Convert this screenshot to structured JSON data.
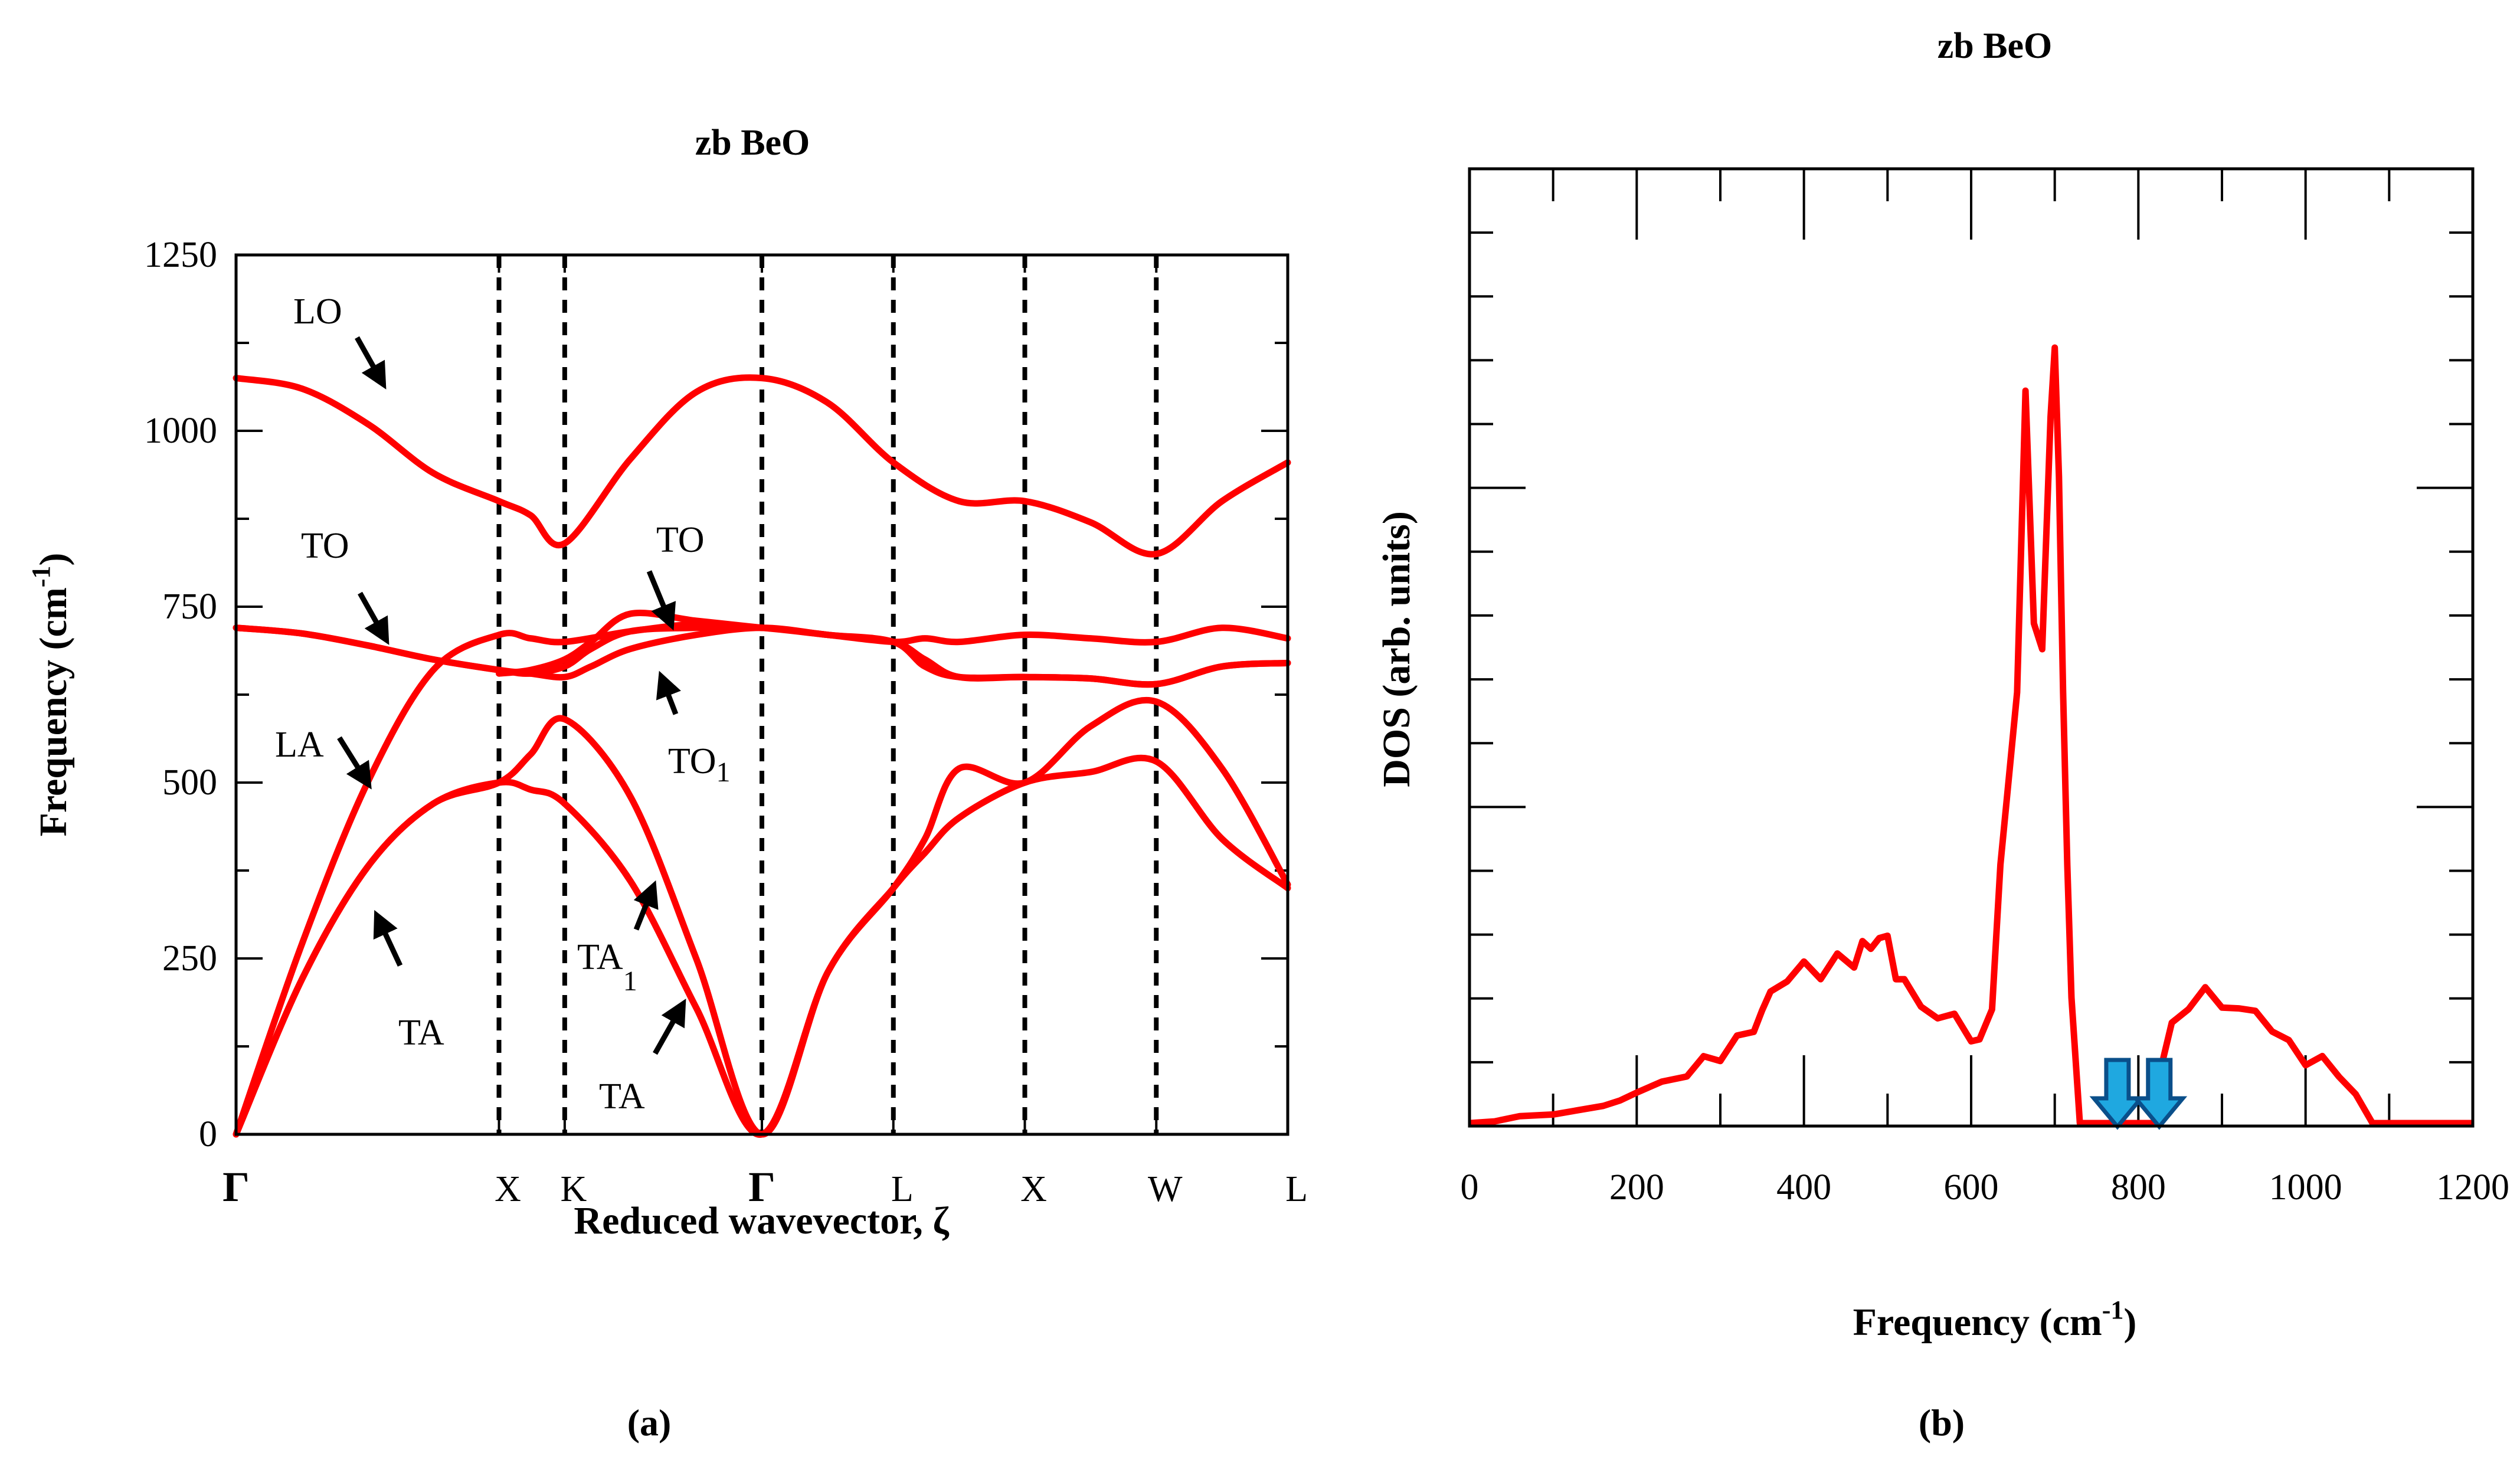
{
  "chart_data": [
    {
      "type": "line",
      "subtype": "phonon-dispersion",
      "panel_label": "a",
      "title": "zb BeO",
      "xlabel": "Reduced wavevector, ζ",
      "ylabel": "Frequency (cm",
      "ylabel_sup": "-1",
      "ylabel_close": ")",
      "ylim": [
        0,
        1250
      ],
      "yticks": [
        "0",
        "250",
        "500",
        "750",
        "1000",
        "1250"
      ],
      "high_symmetry_points": [
        {
          "label": "Γ",
          "x": 0.0
        },
        {
          "label": "X",
          "x": 1.0
        },
        {
          "label": "K",
          "x": 1.25
        },
        {
          "label": "Γ",
          "x": 2.0
        },
        {
          "label": "L",
          "x": 2.5
        },
        {
          "label": "X",
          "x": 3.0
        },
        {
          "label": "W",
          "x": 3.5
        },
        {
          "label": "L",
          "x": 4.0
        }
      ],
      "series": [
        {
          "name": "LO",
          "x": [
            0,
            0.25,
            0.5,
            0.75,
            1.0,
            1.12,
            1.25,
            1.5,
            1.75,
            2.0,
            2.25,
            2.5,
            2.75,
            3.0,
            3.25,
            3.5,
            3.75,
            4.0
          ],
          "y": [
            1075,
            1060,
            1010,
            940,
            900,
            880,
            840,
            960,
            1055,
            1075,
            1040,
            955,
            900,
            900,
            870,
            825,
            900,
            955
          ]
        },
        {
          "name": "TO upper",
          "x": [
            0,
            0.25,
            0.5,
            0.75,
            1.0,
            1.12,
            1.25,
            1.35,
            1.5,
            1.75,
            2.0,
            2.25,
            2.5,
            2.62,
            2.75,
            3.0,
            3.25,
            3.5,
            3.75,
            4.0
          ],
          "y": [
            720,
            712,
            695,
            675,
            660,
            655,
            665,
            690,
            715,
            720,
            720,
            710,
            700,
            665,
            650,
            650,
            648,
            640,
            665,
            670
          ]
        },
        {
          "name": "TO lower",
          "x": [
            0,
            0.25,
            0.5,
            0.75,
            1.0,
            1.12,
            1.25,
            1.35,
            1.5,
            1.75,
            2.0,
            2.25,
            2.5,
            2.62,
            2.75,
            3.0,
            3.25,
            3.5,
            3.75,
            4.0
          ],
          "y": [
            720,
            712,
            695,
            675,
            660,
            655,
            650,
            665,
            690,
            710,
            720,
            710,
            700,
            675,
            650,
            650,
            648,
            640,
            665,
            670
          ]
        },
        {
          "name": "TO1",
          "x": [
            1.0,
            1.12,
            1.25,
            1.35,
            1.5,
            1.75,
            2.0
          ],
          "y": [
            655,
            660,
            675,
            700,
            740,
            730,
            720
          ]
        },
        {
          "name": "LA",
          "x": [
            0,
            0.25,
            0.5,
            0.75,
            1.0,
            1.12,
            1.25,
            1.5,
            1.75,
            2.0,
            2.25,
            2.5,
            2.62,
            2.75,
            3.0,
            3.25,
            3.5,
            3.75,
            4.0
          ],
          "y": [
            0,
            270,
            500,
            660,
            710,
            705,
            700,
            715,
            725,
            720,
            710,
            700,
            705,
            700,
            710,
            705,
            700,
            720,
            705
          ]
        },
        {
          "name": "TA1",
          "x": [
            0,
            0.25,
            0.5,
            0.75,
            1.0,
            1.12,
            1.25,
            1.5,
            1.75,
            2.0,
            2.25,
            2.5,
            2.62,
            2.75,
            3.0,
            3.25,
            3.5,
            3.75,
            4.0
          ],
          "y": [
            0,
            220,
            380,
            470,
            500,
            540,
            590,
            480,
            250,
            0,
            230,
            350,
            420,
            520,
            500,
            580,
            615,
            520,
            355
          ]
        },
        {
          "name": "TA",
          "x": [
            0,
            0.25,
            0.5,
            0.75,
            1.0,
            1.12,
            1.25,
            1.5,
            1.75,
            2.0,
            2.25,
            2.5,
            2.62,
            2.75,
            3.0,
            3.25,
            3.5,
            3.75,
            4.0
          ],
          "y": [
            0,
            220,
            380,
            470,
            500,
            490,
            470,
            360,
            180,
            0,
            230,
            350,
            400,
            450,
            500,
            515,
            530,
            420,
            350
          ]
        }
      ],
      "annotations": [
        {
          "text": "LO",
          "sub": ""
        },
        {
          "text": "TO",
          "sub": ""
        },
        {
          "text": "TO",
          "sub": ""
        },
        {
          "text": "LA",
          "sub": ""
        },
        {
          "text": "TO",
          "sub": "1"
        },
        {
          "text": "TA",
          "sub": "1"
        },
        {
          "text": "TA",
          "sub": ""
        },
        {
          "text": "TA",
          "sub": ""
        }
      ]
    },
    {
      "type": "line",
      "subtype": "density-of-states",
      "panel_label": "b",
      "title": "zb BeO",
      "xlabel": "Frequency (cm",
      "xlabel_sup": "-1",
      "xlabel_close": ")",
      "ylabel": "DOS (arb. units)",
      "xlim": [
        0,
        1200
      ],
      "xticks": [
        "0",
        "200",
        "400",
        "600",
        "800",
        "1000",
        "1200"
      ],
      "ylim": [
        0,
        1
      ],
      "x": [
        0,
        30,
        60,
        100,
        130,
        160,
        180,
        200,
        230,
        260,
        280,
        300,
        320,
        340,
        350,
        360,
        380,
        400,
        420,
        440,
        460,
        470,
        480,
        490,
        500,
        510,
        520,
        540,
        560,
        580,
        600,
        610,
        625,
        635,
        645,
        655,
        665,
        675,
        685,
        695,
        700,
        705,
        710,
        715,
        720,
        730,
        740,
        750,
        760,
        790,
        820,
        830,
        840,
        860,
        880,
        900,
        920,
        940,
        960,
        980,
        1000,
        1020,
        1040,
        1060,
        1080,
        1090,
        1100,
        1150,
        1200
      ],
      "y": [
        0.0,
        0.002,
        0.008,
        0.01,
        0.015,
        0.02,
        0.03,
        0.035,
        0.045,
        0.06,
        0.07,
        0.08,
        0.095,
        0.11,
        0.13,
        0.15,
        0.17,
        0.18,
        0.175,
        0.19,
        0.185,
        0.21,
        0.2,
        0.22,
        0.21,
        0.175,
        0.16,
        0.14,
        0.12,
        0.125,
        0.1,
        0.09,
        0.14,
        0.3,
        0.4,
        0.5,
        0.85,
        0.58,
        0.55,
        0.82,
        0.9,
        0.75,
        0.5,
        0.3,
        0.15,
        0.0,
        0.0,
        0.0,
        0.0,
        0.0,
        0.0,
        0.08,
        0.11,
        0.14,
        0.15,
        0.14,
        0.13,
        0.13,
        0.11,
        0.09,
        0.075,
        0.07,
        0.06,
        0.03,
        0.0,
        0.0,
        0.0,
        0.0,
        0.0
      ],
      "markers": [
        {
          "shape": "down-arrow",
          "x": 775,
          "color": "#1fa8e0"
        },
        {
          "shape": "down-arrow",
          "x": 825,
          "color": "#1fa8e0"
        }
      ]
    }
  ],
  "colors": {
    "curve": "#ff0000",
    "axis": "#000000",
    "marker_fill": "#1fa8e0",
    "marker_stroke": "#0a4f8a"
  },
  "captions": {
    "a": "(a)",
    "b": "(b)"
  }
}
